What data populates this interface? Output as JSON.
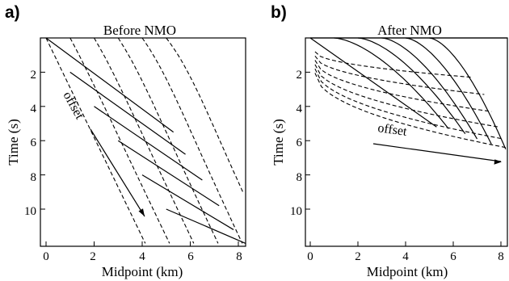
{
  "panel_a": {
    "letter": "a)",
    "title": "Before NMO",
    "xlabel": "Midpoint (km)",
    "ylabel": "Time (s)",
    "annotation": "offset",
    "x_ticks": [
      "0",
      "2",
      "4",
      "6",
      "8"
    ],
    "y_ticks": [
      "2",
      "4",
      "6",
      "8",
      "10"
    ]
  },
  "panel_b": {
    "letter": "b)",
    "title": "After NMO",
    "xlabel": "Midpoint (km)",
    "ylabel": "Time (s)",
    "annotation": "offset",
    "x_ticks": [
      "0",
      "2",
      "4",
      "6",
      "8"
    ],
    "y_ticks": [
      "2",
      "4",
      "6",
      "8",
      "10"
    ]
  }
}
